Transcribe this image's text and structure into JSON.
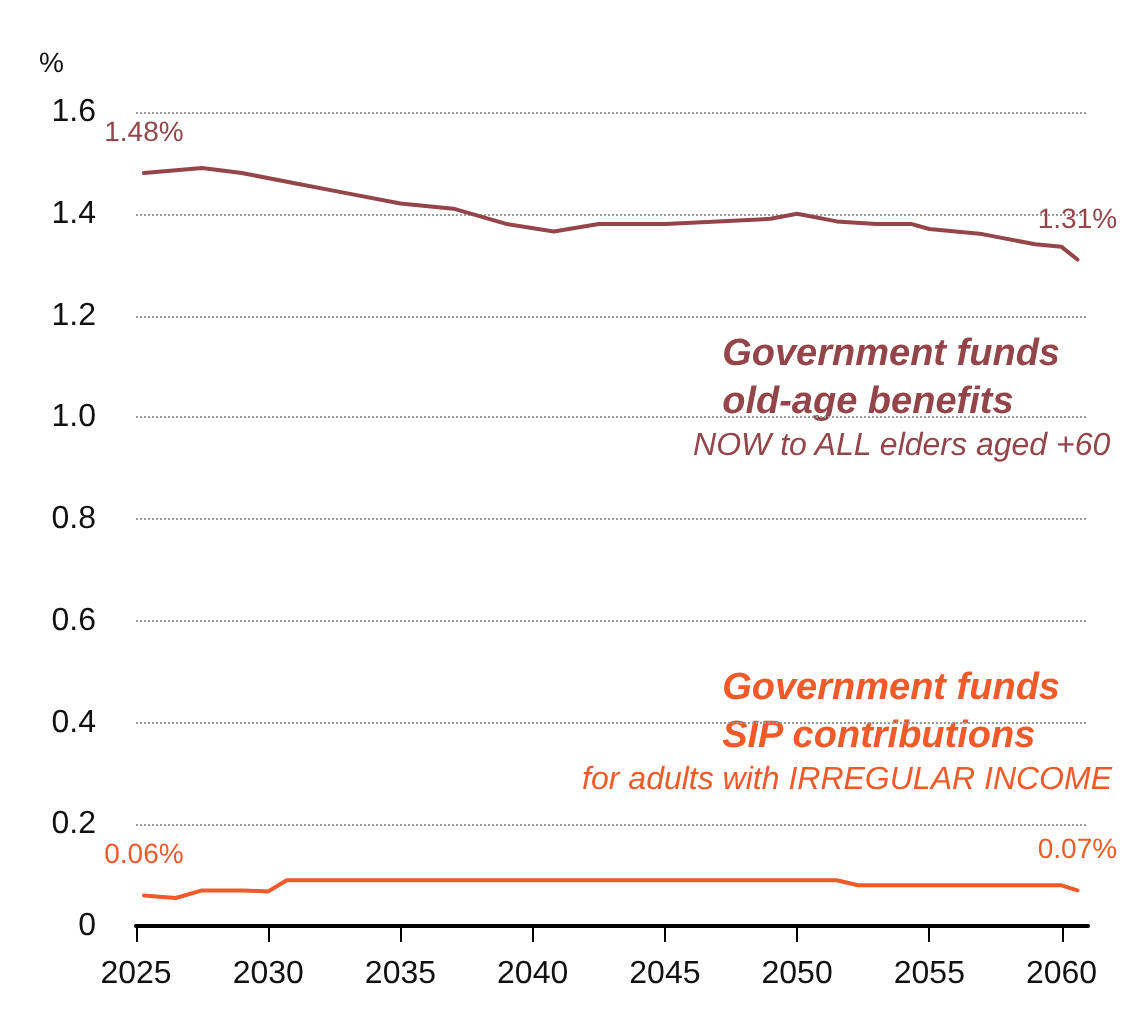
{
  "chart_data": {
    "type": "line",
    "ylabel": "%",
    "x": [
      2025.3,
      2027.5,
      2029,
      2031,
      2033,
      2035,
      2037,
      2039,
      2040.8,
      2042.5,
      2045,
      2047,
      2049,
      2050,
      2051.5,
      2053,
      2054.3,
      2055,
      2057,
      2059,
      2060,
      2060.6
    ],
    "series": [
      {
        "name": "Government funds old-age benefits",
        "color": "#94454a",
        "values": [
          1.48,
          1.49,
          1.48,
          1.46,
          1.44,
          1.42,
          1.41,
          1.38,
          1.365,
          1.38,
          1.38,
          1.385,
          1.39,
          1.4,
          1.385,
          1.38,
          1.38,
          1.37,
          1.36,
          1.34,
          1.335,
          1.31
        ],
        "value_labels": [
          "1.48%",
          null,
          null,
          null,
          null,
          null,
          null,
          null,
          null,
          null,
          null,
          null,
          null,
          null,
          null,
          null,
          null,
          null,
          null,
          null,
          null,
          "1.31%"
        ]
      },
      {
        "name": "Government funds SIP contributions",
        "color": "#f05a28",
        "x": [
          2025.3,
          2026.5,
          2027.5,
          2029,
          2030,
          2030.7,
          2035,
          2040,
          2045,
          2050,
          2051.5,
          2052.3,
          2055,
          2058,
          2060,
          2060.6
        ],
        "values": [
          0.06,
          0.055,
          0.07,
          0.07,
          0.068,
          0.09,
          0.09,
          0.09,
          0.09,
          0.09,
          0.09,
          0.08,
          0.08,
          0.08,
          0.08,
          0.07
        ],
        "value_labels": [
          "0.06%",
          null,
          null,
          null,
          null,
          null,
          null,
          null,
          null,
          null,
          null,
          null,
          null,
          null,
          null,
          "0.07%"
        ]
      }
    ],
    "annotations": [
      "NOW to ALL elders aged +60",
      "for adults with IRREGULAR INCOME"
    ],
    "xlim": [
      2025,
      2061
    ],
    "xticks": [
      2025,
      2030,
      2035,
      2040,
      2045,
      2050,
      2055,
      2060
    ],
    "ylim": [
      0,
      1.6
    ],
    "yticks": [
      0,
      0.2,
      0.4,
      0.6,
      0.8,
      {
        "value": 1,
        "label": "1.0"
      },
      1.2,
      1.4,
      1.6
    ],
    "grid": "y",
    "legend": false,
    "marker": "none",
    "line_style": "solid"
  }
}
